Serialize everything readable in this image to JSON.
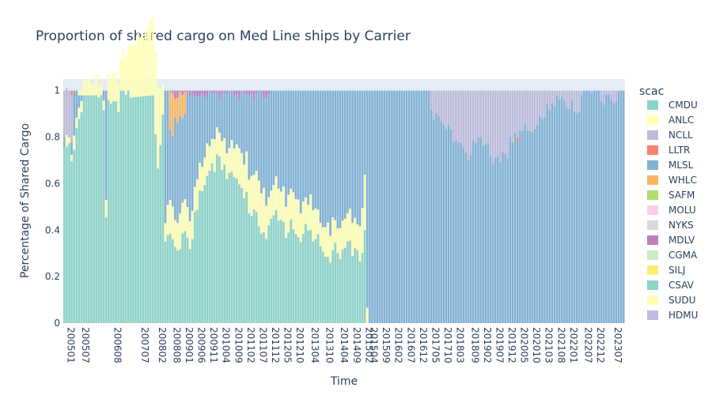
{
  "chart_data": {
    "type": "bar",
    "stacked": true,
    "normalized": true,
    "title": "Proportion of shared cargo on Med Line ships by Carrier",
    "xlabel": "Time",
    "ylabel": "Percentage of Shared Cargo",
    "ylim": [
      0,
      1.05
    ],
    "yticks": [
      0,
      0.2,
      0.4,
      0.6,
      0.8,
      1
    ],
    "ytick_labels": [
      "0",
      "0.2",
      "0.4",
      "0.6",
      "0.8",
      "1"
    ],
    "x_start_month": "200501",
    "x_end_month": "202312",
    "xtick_labels": [
      "200501",
      "200507",
      "200608",
      "200707",
      "200802",
      "200808",
      "200901",
      "200906",
      "200911",
      "201004",
      "201009",
      "201102",
      "201107",
      "201112",
      "201205",
      "201210",
      "201304",
      "201310",
      "201404",
      "201409",
      "201502",
      "201504",
      "201509",
      "201602",
      "201607",
      "201612",
      "201705",
      "201710",
      "201803",
      "201809",
      "201902",
      "201907",
      "201912",
      "202005",
      "202010",
      "202103",
      "202108",
      "202201",
      "202207",
      "202212",
      "202307"
    ],
    "legend_title": "scac",
    "legend_position": "right",
    "carriers": [
      {
        "name": "CMDU",
        "color": "#8dd3c7"
      },
      {
        "name": "ANLC",
        "color": "#ffffb3"
      },
      {
        "name": "NCLL",
        "color": "#bebada"
      },
      {
        "name": "LLTR",
        "color": "#fb8072"
      },
      {
        "name": "MLSL",
        "color": "#80b1d3"
      },
      {
        "name": "WHLC",
        "color": "#fdb462"
      },
      {
        "name": "SAFM",
        "color": "#b3de69"
      },
      {
        "name": "MOLU",
        "color": "#fccde5"
      },
      {
        "name": "NYKS",
        "color": "#d9d9d9"
      },
      {
        "name": "MDLV",
        "color": "#bc80bd"
      },
      {
        "name": "CGMA",
        "color": "#ccebc5"
      },
      {
        "name": "SILJ",
        "color": "#ffed6f"
      },
      {
        "name": "CSAV",
        "color": "#8dd3c7"
      },
      {
        "name": "SUDU",
        "color": "#ffffb3"
      },
      {
        "name": "HDMU",
        "color": "#bebada"
      }
    ],
    "profile": {
      "CSAV_anchors": [
        [
          "200501",
          0.75
        ],
        [
          "200503",
          0.8
        ],
        [
          "200504",
          0.73
        ],
        [
          "200506",
          0.85
        ],
        [
          "200509",
          0.98
        ],
        [
          "200602",
          0.98
        ],
        [
          "200605",
          0.95
        ],
        [
          "200606",
          0.5
        ],
        [
          "200607",
          0.96
        ],
        [
          "200801",
          0.98
        ],
        [
          "200803",
          0.65
        ],
        [
          "200805",
          0.85
        ],
        [
          "200806",
          0.3
        ],
        [
          "200808",
          0.38
        ],
        [
          "200810",
          0.28
        ],
        [
          "200901",
          0.42
        ],
        [
          "200904",
          0.35
        ],
        [
          "200906",
          0.45
        ],
        [
          "200909",
          0.55
        ],
        [
          "200912",
          0.62
        ],
        [
          "201003",
          0.73
        ],
        [
          "201006",
          0.7
        ],
        [
          "201009",
          0.62
        ],
        [
          "201012",
          0.57
        ],
        [
          "201103",
          0.52
        ],
        [
          "201106",
          0.5
        ],
        [
          "201109",
          0.44
        ],
        [
          "201112",
          0.38
        ],
        [
          "201203",
          0.45
        ],
        [
          "201206",
          0.4
        ],
        [
          "201209",
          0.45
        ],
        [
          "201212",
          0.38
        ],
        [
          "201303",
          0.4
        ],
        [
          "201306",
          0.35
        ],
        [
          "201309",
          0.32
        ],
        [
          "201312",
          0.3
        ],
        [
          "201403",
          0.35
        ],
        [
          "201406",
          0.28
        ],
        [
          "201409",
          0.3
        ],
        [
          "201412",
          0.26
        ],
        [
          "201503",
          0.4
        ],
        [
          "201504",
          0.0
        ]
      ],
      "SUDU_anchors": [
        [
          "200501",
          0.0
        ],
        [
          "200507",
          0.02
        ],
        [
          "200512",
          0.02
        ],
        [
          "200605",
          0.04
        ],
        [
          "200803",
          0.33
        ],
        [
          "200805",
          0.1
        ],
        [
          "200806",
          0.05
        ],
        [
          "200808",
          0.12
        ],
        [
          "200901",
          0.1
        ],
        [
          "200906",
          0.1
        ],
        [
          "201001",
          0.1
        ],
        [
          "201006",
          0.08
        ],
        [
          "201009",
          0.1
        ],
        [
          "201012",
          0.14
        ],
        [
          "201106",
          0.14
        ],
        [
          "201109",
          0.16
        ],
        [
          "201112",
          0.12
        ],
        [
          "201206",
          0.12
        ],
        [
          "201212",
          0.13
        ],
        [
          "201303",
          0.11
        ],
        [
          "201306",
          0.1
        ],
        [
          "201312",
          0.1
        ],
        [
          "201406",
          0.09
        ],
        [
          "201412",
          0.1
        ],
        [
          "201503",
          0.2
        ],
        [
          "201504",
          0.05
        ],
        [
          "201505",
          0.0
        ]
      ],
      "HDMU_anchors": [
        [
          "201705",
          0.0
        ],
        [
          "201706",
          0.04
        ],
        [
          "201710",
          0.18
        ],
        [
          "201803",
          0.18
        ],
        [
          "201809",
          0.25
        ],
        [
          "201902",
          0.24
        ],
        [
          "201907",
          0.27
        ],
        [
          "201912",
          0.26
        ],
        [
          "202003",
          0.24
        ],
        [
          "202005",
          0.22
        ],
        [
          "202006",
          0.2
        ],
        [
          "202010",
          0.14
        ],
        [
          "202103",
          0.1
        ],
        [
          "202108",
          0.08
        ],
        [
          "202201",
          0.03
        ],
        [
          "202207",
          0.06
        ],
        [
          "202210",
          0.02
        ],
        [
          "202304",
          0.01
        ],
        [
          "202312",
          0.0
        ]
      ],
      "WHLC_window": [
        "200808",
        "200902",
        0.15
      ],
      "MDLV_window": [
        "200808",
        "201112",
        0.035
      ],
      "MLSL": "remainder"
    }
  }
}
